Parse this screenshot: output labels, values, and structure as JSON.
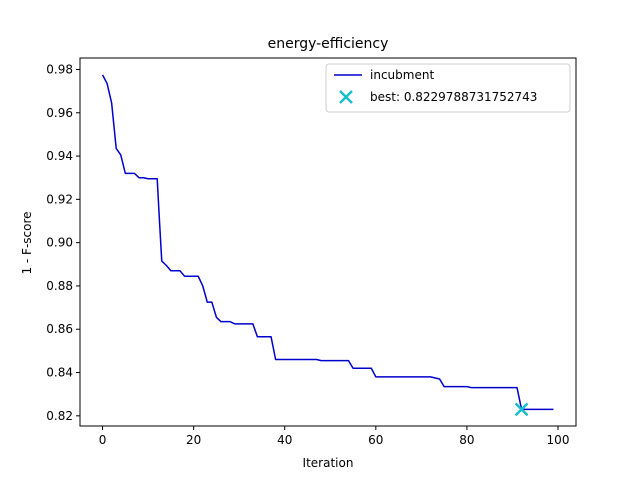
{
  "chart_data": {
    "type": "line",
    "title": "energy-efficiency",
    "xlabel": "Iteration",
    "ylabel": "1 - F-score",
    "xlim": [
      -4.95,
      103.95
    ],
    "ylim": [
      0.8153,
      0.9853
    ],
    "x_ticks": [
      0,
      20,
      40,
      60,
      80,
      100
    ],
    "y_ticks": [
      0.82,
      0.84,
      0.86,
      0.88,
      0.9,
      0.92,
      0.94,
      0.96,
      0.98
    ],
    "y_tick_labels": [
      "0.82",
      "0.84",
      "0.86",
      "0.88",
      "0.90",
      "0.92",
      "0.94",
      "0.96",
      "0.98"
    ],
    "grid": false,
    "legend_position": "top-right",
    "series": [
      {
        "name": "incubment",
        "color": "#0000cc",
        "x": [
          0,
          1,
          2,
          3,
          4,
          5,
          6,
          7,
          8,
          9,
          10,
          11,
          12,
          12.5,
          13,
          14,
          15,
          16,
          17,
          18,
          19,
          20,
          21,
          22,
          23,
          24,
          25,
          26,
          27,
          28,
          29,
          30,
          31,
          32,
          33,
          34,
          35,
          36,
          37,
          38,
          39,
          40,
          47,
          48,
          53,
          54,
          55,
          59,
          60,
          70,
          72,
          74,
          75,
          80,
          81,
          91,
          92,
          99
        ],
        "y": [
          0.9775,
          0.9735,
          0.9645,
          0.9435,
          0.9405,
          0.932,
          0.932,
          0.932,
          0.93,
          0.93,
          0.9295,
          0.9295,
          0.9295,
          0.91,
          0.8915,
          0.8895,
          0.887,
          0.887,
          0.887,
          0.8845,
          0.8845,
          0.8845,
          0.8845,
          0.88,
          0.8725,
          0.8725,
          0.8655,
          0.8635,
          0.8635,
          0.8635,
          0.8625,
          0.8625,
          0.8625,
          0.8625,
          0.8625,
          0.8565,
          0.8565,
          0.8565,
          0.8565,
          0.846,
          0.846,
          0.846,
          0.846,
          0.8455,
          0.8455,
          0.8455,
          0.842,
          0.842,
          0.838,
          0.838,
          0.838,
          0.837,
          0.8335,
          0.8335,
          0.833,
          0.833,
          0.823,
          0.823
        ]
      }
    ],
    "best": {
      "name": "best: 0.8229788731752743",
      "x": 92,
      "y": 0.82298,
      "color": "#17becf",
      "marker": "x"
    }
  }
}
